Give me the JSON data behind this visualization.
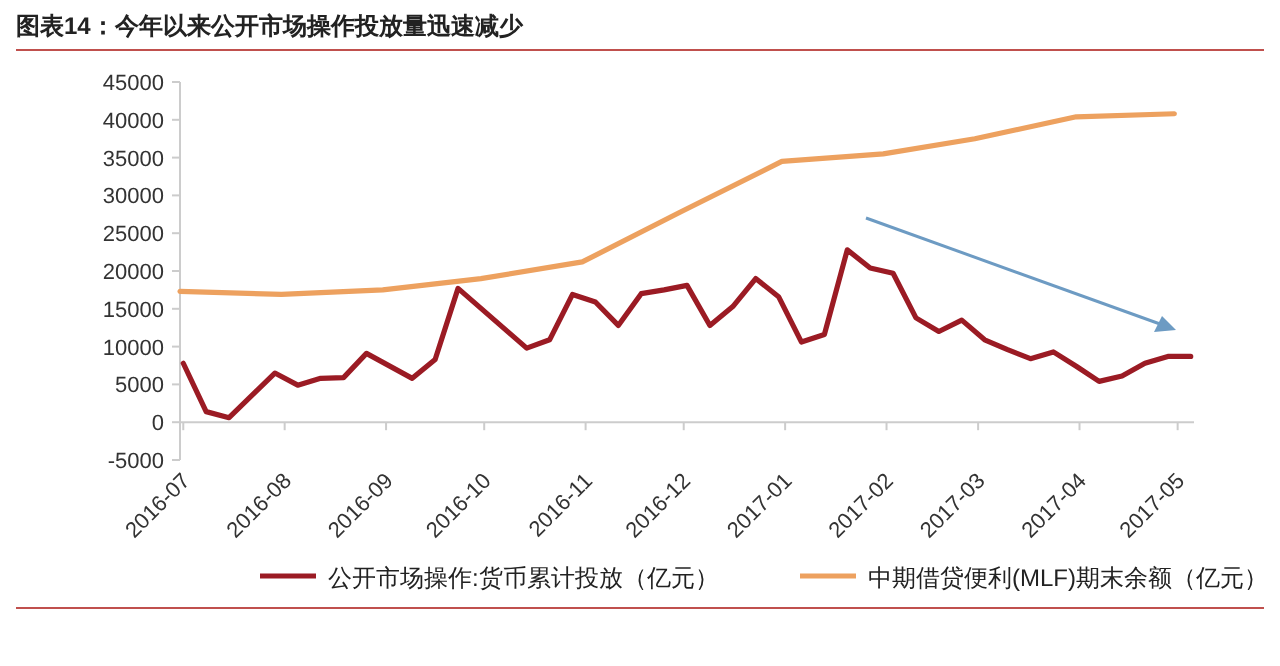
{
  "chart_data": {
    "type": "line",
    "title": "图表14：今年以来公开市场操作投放量迅速减少",
    "series": [
      {
        "name": "公开市场操作:货币累计投放（亿元）",
        "color": "#9b1b24",
        "x": [
          "2016-07-01",
          "2016-07-08",
          "2016-07-15",
          "2016-07-29",
          "2016-08-05",
          "2016-08-12",
          "2016-08-19",
          "2016-08-26",
          "2016-09-09",
          "2016-09-16",
          "2016-09-23",
          "2016-10-14",
          "2016-10-21",
          "2016-10-28",
          "2016-11-04",
          "2016-11-11",
          "2016-11-18",
          "2016-11-25",
          "2016-12-02",
          "2016-12-09",
          "2016-12-16",
          "2016-12-23",
          "2016-12-30",
          "2017-01-06",
          "2017-01-13",
          "2017-01-20",
          "2017-01-27",
          "2017-02-03",
          "2017-02-10",
          "2017-02-17",
          "2017-02-24",
          "2017-03-03",
          "2017-03-10",
          "2017-03-17",
          "2017-03-24",
          "2017-03-31",
          "2017-04-07",
          "2017-04-14",
          "2017-04-21",
          "2017-04-28",
          "2017-05-05"
        ],
        "values": [
          7800,
          1400,
          600,
          6500,
          4900,
          5800,
          5900,
          9100,
          5800,
          8300,
          17700,
          9800,
          10900,
          16900,
          15900,
          12800,
          17000,
          17500,
          18100,
          12800,
          15300,
          19000,
          16600,
          10600,
          11600,
          22800,
          20400,
          19700,
          13800,
          12000,
          13500,
          10900,
          9600,
          8400,
          9300,
          7400,
          5400,
          6100,
          7800,
          8700,
          8700
        ]
      },
      {
        "name": "中期借贷便利(MLF)期末余额（亿元）",
        "color": "#eda15f",
        "x": [
          "2016-06-30",
          "2016-07-31",
          "2016-08-31",
          "2016-09-30",
          "2016-10-31",
          "2016-11-30",
          "2016-12-31",
          "2017-01-31",
          "2017-02-28",
          "2017-03-31",
          "2017-04-30"
        ],
        "values": [
          17300,
          16900,
          17500,
          19000,
          21200,
          27800,
          34500,
          35500,
          37500,
          40400,
          40800
        ]
      }
    ],
    "xlim": [
      "2016-06-30",
      "2017-05-06"
    ],
    "xticks": [
      "2016-07",
      "2016-08",
      "2016-09",
      "2016-10",
      "2016-11",
      "2016-12",
      "2017-01",
      "2017-02",
      "2017-03",
      "2017-04",
      "2017-05"
    ],
    "ylim": [
      -5000,
      45000
    ],
    "yticks": [
      -5000,
      0,
      5000,
      10000,
      15000,
      20000,
      25000,
      30000,
      35000,
      40000,
      45000
    ],
    "legend": "bottom",
    "grid": false,
    "marker": "none",
    "line_style": "solid"
  }
}
